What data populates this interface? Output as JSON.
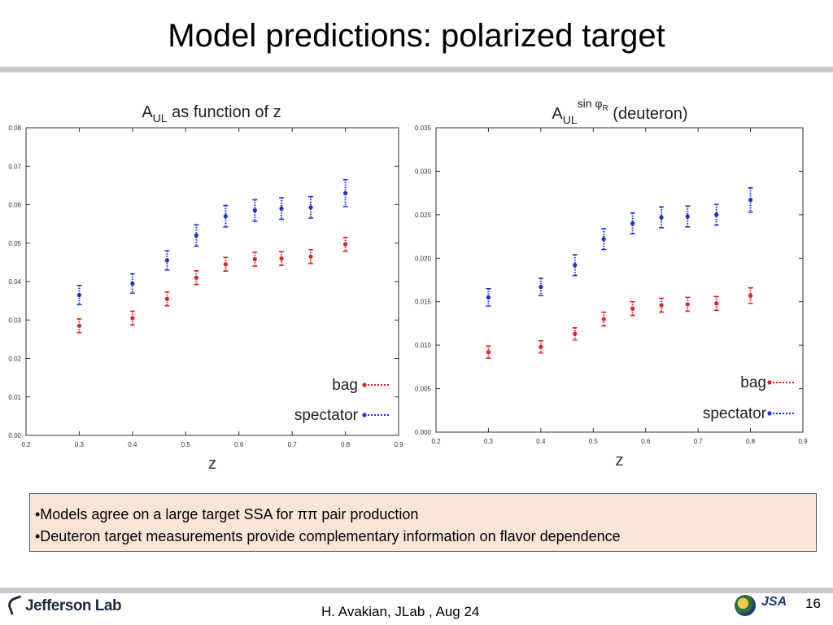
{
  "slide": {
    "title": "Model predictions: polarized target",
    "notes": [
      "•Models agree on a large target SSA for ππ pair production",
      "•Deuteron target measurements provide complementary information on flavor dependence"
    ],
    "footer_text": "H. Avakian, JLab ,  Aug 24",
    "page_number": "16",
    "logo_text": "Jefferson Lab",
    "partner_logo_text": "JSA"
  },
  "colors": {
    "bag": "#e0202a",
    "spectator": "#2030d0",
    "rule": "#c8c8c8",
    "note_bg": "#fbe5d6"
  },
  "chart_data": [
    {
      "type": "scatter",
      "title": "A_UL as function of z",
      "title_main": "A",
      "title_sub": "UL",
      "title_rest": " as function of z",
      "xlabel": "z",
      "ylabel": "",
      "xlim": [
        0.2,
        0.9
      ],
      "ylim": [
        0.0,
        0.08
      ],
      "x_ticks": [
        "0.2",
        "0.3",
        "0.4",
        "0.5",
        "0.6",
        "0.7",
        "0.8",
        "0.9"
      ],
      "y_ticks": [
        "0.00",
        "0.01",
        "0.02",
        "0.03",
        "0.04",
        "0.05",
        "0.06",
        "0.07",
        "0.08"
      ],
      "legend_position": "bottom-right",
      "grid": false,
      "series": [
        {
          "name": "bag",
          "color": "#e0202a",
          "x": [
            0.3,
            0.4,
            0.465,
            0.52,
            0.575,
            0.63,
            0.68,
            0.735,
            0.8
          ],
          "y": [
            0.0285,
            0.0305,
            0.0355,
            0.041,
            0.0445,
            0.0458,
            0.046,
            0.0465,
            0.0497
          ],
          "err": [
            0.0018,
            0.0018,
            0.0018,
            0.0018,
            0.0018,
            0.0018,
            0.0018,
            0.0018,
            0.0018
          ]
        },
        {
          "name": "spectator",
          "color": "#2030d0",
          "x": [
            0.3,
            0.4,
            0.465,
            0.52,
            0.575,
            0.63,
            0.68,
            0.735,
            0.8
          ],
          "y": [
            0.0365,
            0.0395,
            0.0455,
            0.052,
            0.057,
            0.0585,
            0.059,
            0.0593,
            0.063
          ],
          "err": [
            0.0025,
            0.0025,
            0.0025,
            0.0028,
            0.0028,
            0.0028,
            0.0028,
            0.0028,
            0.0035
          ]
        }
      ]
    },
    {
      "type": "scatter",
      "title": "A_UL^{sin φR} (deuteron)",
      "title_main": "A",
      "title_sub": "UL",
      "title_sup": "sin φ",
      "title_sup_sub": "R",
      "title_rest": " (deuteron)",
      "xlabel": "z",
      "ylabel": "",
      "xlim": [
        0.2,
        0.9
      ],
      "ylim": [
        0.0,
        0.035
      ],
      "x_ticks": [
        "0.2",
        "0.3",
        "0.4",
        "0.5",
        "0.6",
        "0.7",
        "0.8",
        "0.9"
      ],
      "y_ticks": [
        "0.000",
        "0.005",
        "0.010",
        "0.015",
        "0.020",
        "0.025",
        "0.030",
        "0.035"
      ],
      "legend_position": "bottom-right",
      "grid": false,
      "series": [
        {
          "name": "bag",
          "color": "#e0202a",
          "x": [
            0.3,
            0.4,
            0.465,
            0.52,
            0.575,
            0.63,
            0.68,
            0.735,
            0.8
          ],
          "y": [
            0.0092,
            0.0098,
            0.0113,
            0.013,
            0.0142,
            0.0146,
            0.0147,
            0.0148,
            0.0157
          ],
          "err": [
            0.0007,
            0.0007,
            0.0007,
            0.0008,
            0.0008,
            0.0008,
            0.0008,
            0.0008,
            0.0009
          ]
        },
        {
          "name": "spectator",
          "color": "#2030d0",
          "x": [
            0.3,
            0.4,
            0.465,
            0.52,
            0.575,
            0.63,
            0.68,
            0.735,
            0.8
          ],
          "y": [
            0.0155,
            0.0167,
            0.0192,
            0.0222,
            0.024,
            0.0247,
            0.0248,
            0.025,
            0.0267
          ],
          "err": [
            0.001,
            0.001,
            0.0012,
            0.0012,
            0.0012,
            0.0012,
            0.0012,
            0.0012,
            0.0014
          ]
        }
      ]
    }
  ]
}
